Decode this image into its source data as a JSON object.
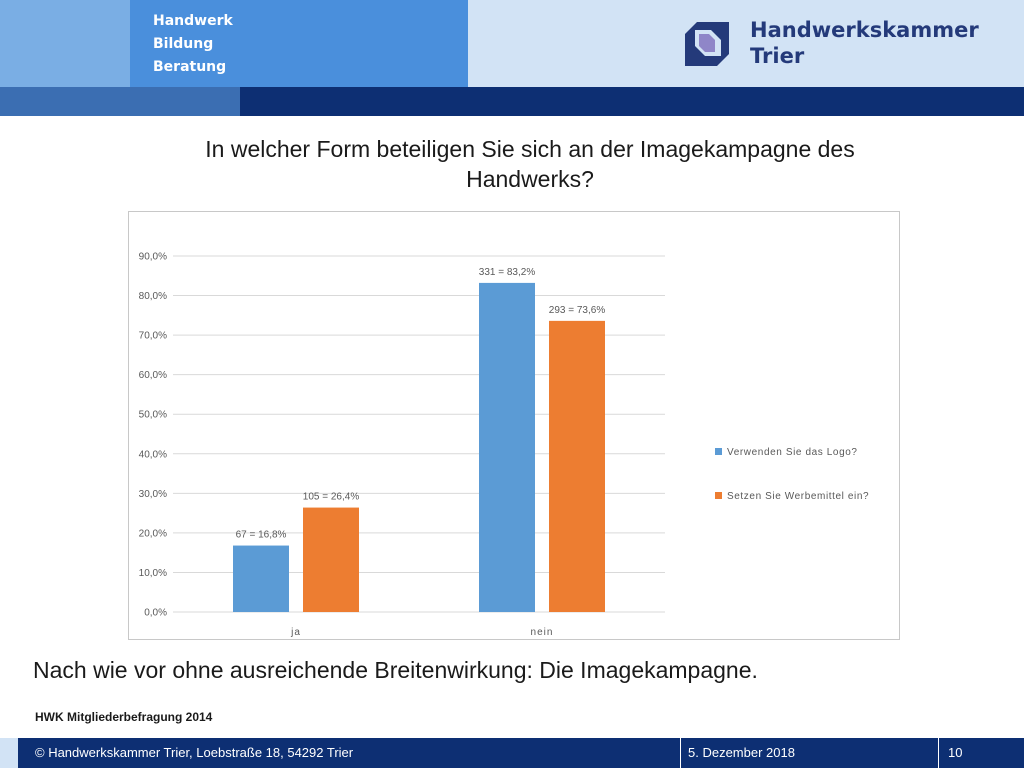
{
  "header": {
    "tagline": [
      "Handwerk",
      "Bildung",
      "Beratung"
    ],
    "org_name": [
      "Handwerkskammer",
      "Trier"
    ],
    "logo_icon": "hwk-logo-icon"
  },
  "slide": {
    "title": "In welcher Form beteiligen Sie sich an der Imagekampagne des Handwerks?",
    "subtitle": "Nach wie vor ohne ausreichende Breitenwirkung: Die Imagekampagne.",
    "source": "HWK Mitgliederbefragung 2014"
  },
  "chart_data": {
    "type": "bar",
    "categories": [
      "ja",
      "nein"
    ],
    "series": [
      {
        "name": "Verwenden Sie das Logo?",
        "color": "#5b9bd5",
        "values": [
          16.8,
          83.2
        ],
        "labels": [
          "67 = 16,8%",
          "331 = 83,2%"
        ]
      },
      {
        "name": "Setzen Sie Werbemittel ein?",
        "color": "#ed7d31",
        "values": [
          26.4,
          73.6
        ],
        "labels": [
          "105 = 26,4%",
          "293 = 73,6%"
        ]
      }
    ],
    "ylim": [
      0,
      90
    ],
    "yticks": [
      "0,0%",
      "10,0%",
      "20,0%",
      "30,0%",
      "40,0%",
      "50,0%",
      "60,0%",
      "70,0%",
      "80,0%",
      "90,0%"
    ],
    "grid": true,
    "legend_position": "right",
    "title": "",
    "xlabel": "",
    "ylabel": ""
  },
  "footer": {
    "copyright": "© Handwerkskammer Trier, Loebstraße 18, 54292 Trier",
    "date": "5. Dezember 2018",
    "page": "10"
  }
}
